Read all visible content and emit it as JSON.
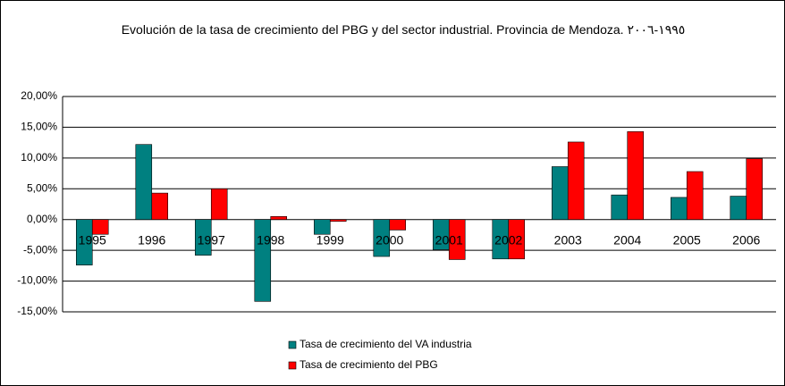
{
  "chart_data": {
    "type": "bar",
    "title": "Evolución de la tasa de crecimiento del PBG y del sector industrial. Provincia de Mendoza. ١٩٩٥-٢٠٠٦",
    "categories": [
      "1995",
      "1996",
      "1997",
      "1998",
      "1999",
      "2000",
      "2001",
      "2002",
      "2003",
      "2004",
      "2005",
      "2006"
    ],
    "series": [
      {
        "name": "Tasa de crecimiento del VA industria",
        "color": "#008080",
        "values": [
          -7.4,
          12.2,
          -5.8,
          -13.3,
          -2.4,
          -6.0,
          -4.9,
          -6.4,
          8.6,
          4.0,
          3.6,
          3.8
        ]
      },
      {
        "name": "Tasa de crecimiento del PBG",
        "color": "#ff0000",
        "values": [
          -2.4,
          4.3,
          5.0,
          0.5,
          -0.3,
          -1.7,
          -6.5,
          -6.4,
          12.6,
          14.3,
          7.8,
          9.9
        ]
      }
    ],
    "ylim": [
      -15,
      20
    ],
    "yticks": [
      {
        "value": -15,
        "label": "-15,00%"
      },
      {
        "value": -10,
        "label": "-10,00%"
      },
      {
        "value": -5,
        "label": "-5,00%"
      },
      {
        "value": 0,
        "label": "0,00%"
      },
      {
        "value": 5,
        "label": "5,00%"
      },
      {
        "value": 10,
        "label": "10,00%"
      },
      {
        "value": 15,
        "label": "15,00%"
      },
      {
        "value": 20,
        "label": "20,00%"
      }
    ],
    "grid": true,
    "legend": "bottom"
  }
}
